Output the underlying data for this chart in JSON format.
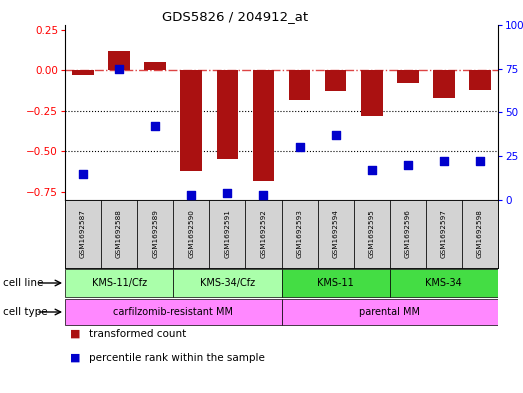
{
  "title": "GDS5826 / 204912_at",
  "samples": [
    "GSM1692587",
    "GSM1692588",
    "GSM1692589",
    "GSM1692590",
    "GSM1692591",
    "GSM1692592",
    "GSM1692593",
    "GSM1692594",
    "GSM1692595",
    "GSM1692596",
    "GSM1692597",
    "GSM1692598"
  ],
  "transformed_count": [
    -0.03,
    0.12,
    0.05,
    -0.62,
    -0.55,
    -0.68,
    -0.18,
    -0.13,
    -0.28,
    -0.08,
    -0.17,
    -0.12
  ],
  "percentile_rank": [
    15,
    75,
    42,
    3,
    4,
    3,
    30,
    37,
    17,
    20,
    22,
    22
  ],
  "cell_line_groups": [
    {
      "label": "KMS-11/Cfz",
      "start": 0,
      "end": 3,
      "color": "#aaffaa"
    },
    {
      "label": "KMS-34/Cfz",
      "start": 3,
      "end": 6,
      "color": "#aaffaa"
    },
    {
      "label": "KMS-11",
      "start": 6,
      "end": 9,
      "color": "#44dd44"
    },
    {
      "label": "KMS-34",
      "start": 9,
      "end": 12,
      "color": "#44dd44"
    }
  ],
  "cell_type_groups": [
    {
      "label": "carfilzomib-resistant MM",
      "start": 0,
      "end": 6,
      "color": "#ff88ff"
    },
    {
      "label": "parental MM",
      "start": 6,
      "end": 12,
      "color": "#ff88ff"
    }
  ],
  "bar_color": "#aa1111",
  "dot_color": "#0000cc",
  "hline_color": "#dd4444",
  "grid_color": "#000000",
  "ylim_left": [
    -0.8,
    0.28
  ],
  "ylim_right": [
    0,
    100
  ],
  "yticks_left": [
    0.25,
    0.0,
    -0.25,
    -0.5,
    -0.75
  ],
  "yticks_right": [
    100,
    75,
    50,
    25,
    0
  ],
  "legend_items": [
    "transformed count",
    "percentile rank within the sample"
  ],
  "bar_width": 0.6,
  "dot_size": 28
}
